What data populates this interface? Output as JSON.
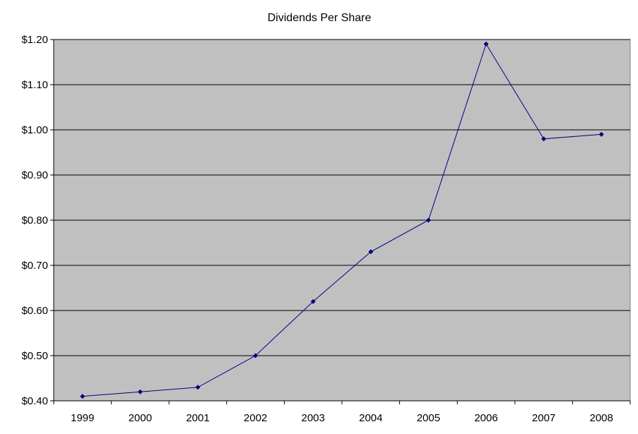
{
  "chart_data": {
    "type": "line",
    "title": "Dividends Per Share",
    "xlabel": "",
    "ylabel": "",
    "categories": [
      "1999",
      "2000",
      "2001",
      "2002",
      "2003",
      "2004",
      "2005",
      "2006",
      "2007",
      "2008"
    ],
    "series": [
      {
        "values": [
          0.41,
          0.42,
          0.43,
          0.5,
          0.62,
          0.73,
          0.8,
          1.19,
          0.98,
          0.99
        ]
      }
    ],
    "ylim": [
      0.4,
      1.2
    ],
    "yticks": [
      0.4,
      0.5,
      0.6,
      0.7,
      0.8,
      0.9,
      1.0,
      1.1,
      1.2
    ],
    "ytick_labels": [
      "$0.40",
      "$0.50",
      "$0.60",
      "$0.70",
      "$0.80",
      "$0.90",
      "$1.00",
      "$1.10",
      "$1.20"
    ],
    "grid": true,
    "legend": "none",
    "colors": {
      "plot_background": "#C0C0C0",
      "line": "#000080",
      "grid": "#000000"
    }
  }
}
